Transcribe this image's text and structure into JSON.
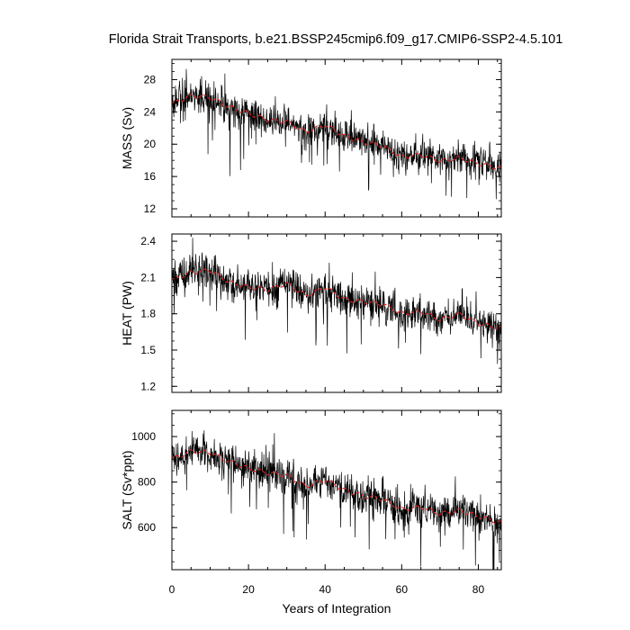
{
  "title": "Florida Strait Transports, b.e21.BSSP245cmip6.f09_g17.CMIP6-SSP2-4.5.101",
  "x_axis": {
    "label": "Years of Integration",
    "ticks": [
      "0",
      "20",
      "40",
      "60",
      "80"
    ]
  },
  "panels": [
    {
      "id": "mass",
      "ylabel": "MASS (Sv)",
      "ticks": [
        "12",
        "16",
        "20",
        "24",
        "28"
      ]
    },
    {
      "id": "heat",
      "ylabel": "HEAT (PW)",
      "ticks": [
        "1.2",
        "1.5",
        "1.8",
        "2.1",
        "2.4"
      ]
    },
    {
      "id": "salt",
      "ylabel": "SALT (Sv*ppt)",
      "ticks": [
        "600",
        "800",
        "1000"
      ]
    }
  ],
  "colors": {
    "monthly": "#000000",
    "smoothed": "#e02020"
  },
  "chart_data": [
    {
      "type": "line",
      "ylabel": "MASS (Sv)",
      "xlabel": "Years of Integration",
      "xlim": [
        0,
        86
      ],
      "ylim": [
        11,
        30.5
      ],
      "yticks": [
        12,
        16,
        20,
        24,
        28
      ],
      "grid": false,
      "series": [
        {
          "x": [
            0,
            5,
            10,
            15,
            20,
            25,
            30,
            35,
            40,
            45,
            50,
            55,
            60,
            65,
            70,
            75,
            80,
            86
          ],
          "values": [
            25.0,
            26.0,
            25.8,
            24.6,
            23.8,
            23.0,
            22.8,
            21.5,
            22.4,
            21.0,
            20.3,
            19.8,
            18.4,
            18.7,
            17.9,
            18.3,
            17.6,
            17.0
          ]
        },
        {
          "x": [
            0,
            5,
            10,
            15,
            20,
            25,
            30,
            35,
            40,
            45,
            50,
            55,
            60,
            65,
            70,
            75,
            80,
            86
          ],
          "values": [
            25.0,
            26.0,
            25.8,
            24.6,
            23.8,
            23.0,
            22.8,
            21.5,
            22.4,
            21.0,
            20.3,
            19.8,
            18.4,
            18.7,
            17.9,
            18.3,
            17.6,
            17.0
          ]
        }
      ]
    },
    {
      "type": "line",
      "ylabel": "HEAT (PW)",
      "xlabel": "Years of Integration",
      "xlim": [
        0,
        86
      ],
      "ylim": [
        1.15,
        2.46
      ],
      "yticks": [
        1.2,
        1.5,
        1.8,
        2.1,
        2.4
      ],
      "grid": false,
      "series": [
        {
          "x": [
            0,
            5,
            10,
            15,
            20,
            25,
            30,
            35,
            40,
            45,
            50,
            55,
            60,
            65,
            70,
            75,
            80,
            86
          ],
          "values": [
            2.08,
            2.14,
            2.16,
            2.06,
            2.02,
            2.0,
            2.05,
            1.95,
            2.02,
            1.92,
            1.9,
            1.88,
            1.8,
            1.82,
            1.75,
            1.8,
            1.72,
            1.68
          ]
        },
        {
          "x": [
            0,
            5,
            10,
            15,
            20,
            25,
            30,
            35,
            40,
            45,
            50,
            55,
            60,
            65,
            70,
            75,
            80,
            86
          ],
          "values": [
            2.08,
            2.14,
            2.16,
            2.06,
            2.02,
            2.0,
            2.05,
            1.95,
            2.02,
            1.92,
            1.9,
            1.88,
            1.8,
            1.82,
            1.75,
            1.8,
            1.72,
            1.68
          ]
        }
      ]
    },
    {
      "type": "line",
      "ylabel": "SALT (Sv*ppt)",
      "xlabel": "Years of Integration",
      "xlim": [
        0,
        86
      ],
      "ylim": [
        415,
        1115
      ],
      "yticks": [
        600,
        800,
        1000
      ],
      "grid": false,
      "series": [
        {
          "x": [
            0,
            5,
            10,
            15,
            20,
            25,
            30,
            35,
            40,
            45,
            50,
            55,
            60,
            65,
            70,
            75,
            80,
            86
          ],
          "values": [
            900,
            935,
            930,
            890,
            860,
            840,
            830,
            780,
            810,
            765,
            740,
            725,
            680,
            690,
            660,
            675,
            650,
            620
          ]
        },
        {
          "x": [
            0,
            5,
            10,
            15,
            20,
            25,
            30,
            35,
            40,
            45,
            50,
            55,
            60,
            65,
            70,
            75,
            80,
            86
          ],
          "values": [
            900,
            935,
            930,
            890,
            860,
            840,
            830,
            780,
            810,
            765,
            740,
            725,
            680,
            690,
            660,
            675,
            650,
            620
          ]
        }
      ]
    }
  ]
}
